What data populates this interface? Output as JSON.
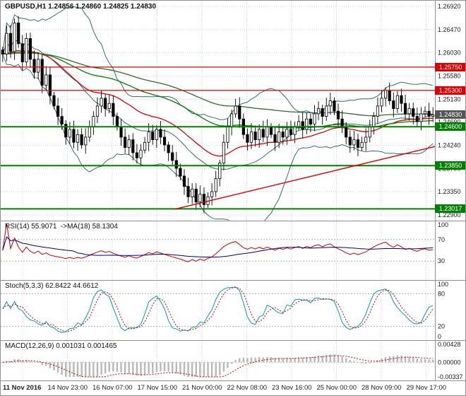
{
  "header": {
    "title": "GBPUSD,H1 1.24856 1.24860 1.24825 1.24830"
  },
  "chart_data": {
    "type": "candlestick",
    "symbol": "GBPUSD",
    "timeframe": "H1",
    "ohlc": {
      "open": 1.24856,
      "high": 1.2486,
      "low": 1.24825,
      "close": 1.2483
    },
    "x_labels": [
      "11 Nov 2016",
      "14 Nov 23:00",
      "16 Nov 07:00",
      "17 Nov 15:00",
      "21 Nov 00:00",
      "22 Nov 08:00",
      "23 Nov 16:00",
      "25 Nov 00:00",
      "28 Nov 09:00",
      "29 Nov 17:00"
    ],
    "price_axis": {
      "min": 1.229,
      "max": 1.2692,
      "ticks": [
        "1.26920",
        "1.26470",
        "1.26030",
        "1.25580",
        "1.25130",
        "1.24690",
        "1.24240",
        "1.23790",
        "1.23350",
        "1.22900"
      ]
    },
    "levels": [
      {
        "label": "1.25750",
        "price": 1.2575,
        "color": "#dd0000",
        "width": 1.2,
        "type": "resistance"
      },
      {
        "label": "1.25300",
        "price": 1.253,
        "color": "#dd0000",
        "width": 1.2,
        "type": "resistance"
      },
      {
        "label": "1.24600",
        "price": 1.246,
        "color": "#008000",
        "width": 2,
        "type": "support"
      },
      {
        "label": "1.23850",
        "price": 1.2385,
        "color": "#008000",
        "width": 2,
        "type": "support"
      },
      {
        "label": "1.23017",
        "price": 1.23017,
        "color": "#008000",
        "width": 2,
        "type": "support"
      }
    ],
    "current_price": {
      "label": "1.24830",
      "price": 1.2483,
      "color": "#555555"
    },
    "trendline": {
      "x1_frac": 0.4,
      "price1": 1.2301,
      "x2_frac": 1.0,
      "price2": 1.2422,
      "color": "#dd0000"
    },
    "closes": [
      1.26,
      1.264,
      1.2605,
      1.266,
      1.262,
      1.2585,
      1.263,
      1.259,
      1.2565,
      1.259,
      1.254,
      1.256,
      1.252,
      1.25,
      1.248,
      1.2465,
      1.244,
      1.2455,
      1.243,
      1.2445,
      1.2425,
      1.244,
      1.246,
      1.248,
      1.25,
      1.2515,
      1.2495,
      1.2505,
      1.248,
      1.246,
      1.244,
      1.242,
      1.2435,
      1.241,
      1.24,
      1.2415,
      1.243,
      1.245,
      1.2435,
      1.2455,
      1.244,
      1.2425,
      1.241,
      1.2395,
      1.238,
      1.2365,
      1.2345,
      1.2325,
      1.234,
      1.2315,
      1.233,
      1.231,
      1.2325,
      1.2335,
      1.236,
      1.239,
      1.243,
      1.246,
      1.2485,
      1.25,
      1.2475,
      1.2445,
      1.243,
      1.245,
      1.2435,
      1.2455,
      1.244,
      1.246,
      1.2445,
      1.243,
      1.245,
      1.244,
      1.2455,
      1.2445,
      1.246,
      1.247,
      1.2455,
      1.2475,
      1.2465,
      1.2485,
      1.2495,
      1.248,
      1.25,
      1.251,
      1.249,
      1.2475,
      1.246,
      1.244,
      1.2425,
      1.2435,
      1.242,
      1.243,
      1.244,
      1.246,
      1.248,
      1.25,
      1.2515,
      1.253,
      1.251,
      1.2495,
      1.252,
      1.2505,
      1.2485,
      1.2495,
      1.248,
      1.247,
      1.2485,
      1.249,
      1.248,
      1.2483
    ],
    "styles": {
      "candle_up": "#ffffff",
      "candle_down": "#000000",
      "candle_outline": "#000000",
      "bands": "#3a6b6b",
      "ma_fast": "#dd0000",
      "ma_mid": "#008000",
      "ma_slow": "#2e6b2e",
      "grid": "#cdcdcd",
      "panel_border": "#909090"
    },
    "indicators": {
      "rsi": {
        "label": "RSI(14) 55.9071  ->MA(18) 58.1304",
        "period": 14,
        "ma_period": 18,
        "ticks": [
          "100",
          "70",
          "30"
        ],
        "level_lines": [
          70,
          30
        ],
        "line_color": "#cc0000",
        "ma_color": "#000080"
      },
      "stoch": {
        "label": "Stoch(5,3,3) 62.8422 44.6612",
        "k": 5,
        "slowing": 3,
        "d": 3,
        "ticks": [
          "100",
          "80",
          "20",
          "0"
        ],
        "level_lines": [
          80,
          20
        ],
        "k_color": "#00a0a0",
        "d_color": "#cc0000"
      },
      "macd": {
        "label": "MACD(12,26,9) 0.001031 0.001465",
        "fast": 12,
        "slow": 26,
        "signal": 9,
        "ticks": [
          "0.00428",
          "0.00000",
          "-0.00337"
        ],
        "hist_color": "#b8b8b8",
        "signal_color": "#cc0000"
      }
    }
  }
}
